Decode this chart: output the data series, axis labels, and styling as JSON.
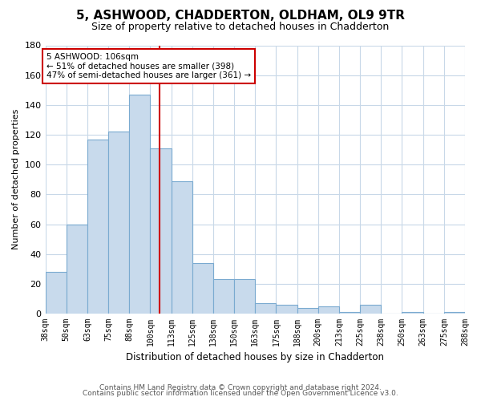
{
  "title": "5, ASHWOOD, CHADDERTON, OLDHAM, OL9 9TR",
  "subtitle": "Size of property relative to detached houses in Chadderton",
  "xlabel": "Distribution of detached houses by size in Chadderton",
  "ylabel": "Number of detached properties",
  "bin_edges": [
    38,
    50,
    63,
    75,
    88,
    100,
    113,
    125,
    138,
    150,
    163,
    175,
    188,
    200,
    213,
    225,
    238,
    250,
    263,
    275,
    288
  ],
  "counts": [
    28,
    60,
    117,
    122,
    147,
    111,
    89,
    34,
    23,
    23,
    7,
    6,
    4,
    5,
    1,
    6,
    0,
    1,
    0,
    1
  ],
  "bar_color": "#c8daec",
  "bar_edge_color": "#7aaad0",
  "vline_x": 106,
  "vline_color": "#cc0000",
  "annotation_text": "5 ASHWOOD: 106sqm\n← 51% of detached houses are smaller (398)\n47% of semi-detached houses are larger (361) →",
  "annotation_box_color": "#ffffff",
  "annotation_box_edge": "#cc0000",
  "ylim": [
    0,
    180
  ],
  "tick_labels": [
    "38sqm",
    "50sqm",
    "63sqm",
    "75sqm",
    "88sqm",
    "100sqm",
    "113sqm",
    "125sqm",
    "138sqm",
    "150sqm",
    "163sqm",
    "175sqm",
    "188sqm",
    "200sqm",
    "213sqm",
    "225sqm",
    "238sqm",
    "250sqm",
    "263sqm",
    "275sqm",
    "288sqm"
  ],
  "footer1": "Contains HM Land Registry data © Crown copyright and database right 2024.",
  "footer2": "Contains public sector information licensed under the Open Government Licence v3.0.",
  "background_color": "#ffffff",
  "grid_color": "#c8d8e8",
  "yticks": [
    0,
    20,
    40,
    60,
    80,
    100,
    120,
    140,
    160,
    180
  ]
}
